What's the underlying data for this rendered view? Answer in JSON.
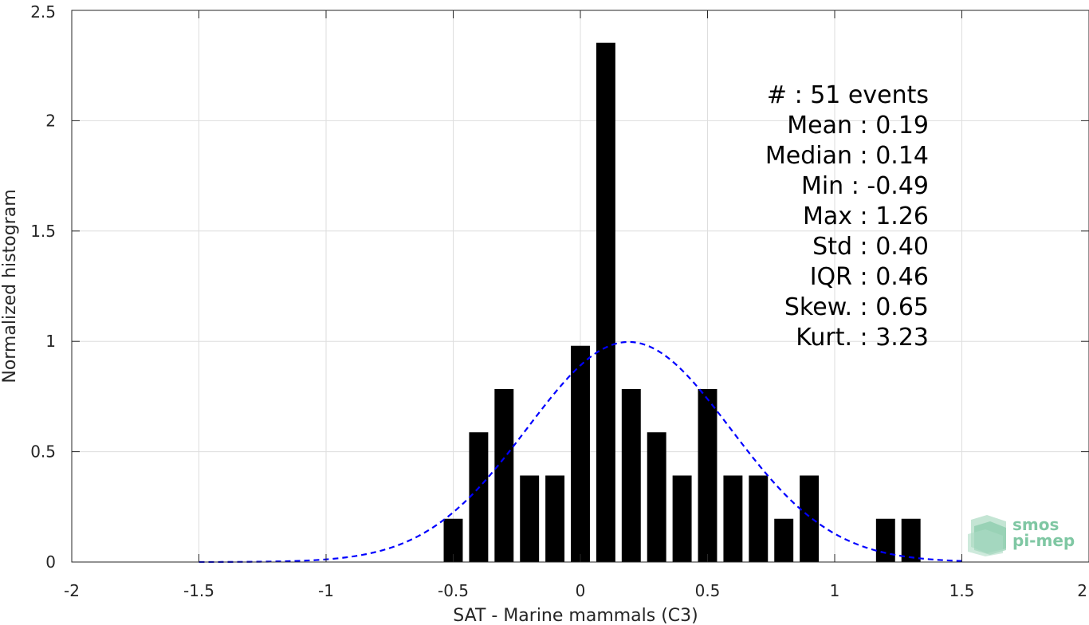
{
  "chart_data": {
    "type": "bar",
    "xlabel": "SAT - Marine mammals (C3)",
    "ylabel": "Normalized histogram",
    "xlim": [
      -2,
      2
    ],
    "ylim": [
      0,
      2.5
    ],
    "xticks": [
      -2,
      -1.5,
      -1,
      -0.5,
      0,
      0.5,
      1,
      1.5,
      2
    ],
    "xtick_labels": [
      "-2",
      "-1.5",
      "-1",
      "-0.5",
      "0",
      "0.5",
      "1",
      "1.5",
      "2"
    ],
    "yticks": [
      0,
      0.5,
      1,
      1.5,
      2,
      2.5
    ],
    "ytick_labels": [
      "0",
      "0.5",
      "1",
      "1.5",
      "2",
      "2.5"
    ],
    "grid": true,
    "bin_width": 0.1,
    "bins": [
      {
        "center": -0.5,
        "value": 0.196
      },
      {
        "center": -0.4,
        "value": 0.588
      },
      {
        "center": -0.3,
        "value": 0.784
      },
      {
        "center": -0.2,
        "value": 0.392
      },
      {
        "center": -0.1,
        "value": 0.392
      },
      {
        "center": 0.0,
        "value": 0.98
      },
      {
        "center": 0.1,
        "value": 2.353
      },
      {
        "center": 0.2,
        "value": 0.784
      },
      {
        "center": 0.3,
        "value": 0.588
      },
      {
        "center": 0.4,
        "value": 0.392
      },
      {
        "center": 0.5,
        "value": 0.784
      },
      {
        "center": 0.6,
        "value": 0.392
      },
      {
        "center": 0.7,
        "value": 0.392
      },
      {
        "center": 0.8,
        "value": 0.196
      },
      {
        "center": 0.9,
        "value": 0.392
      },
      {
        "center": 1.2,
        "value": 0.196
      },
      {
        "center": 1.3,
        "value": 0.196
      }
    ],
    "bar_color": "#000000",
    "fit_curve": {
      "type": "gaussian",
      "mean": 0.19,
      "std": 0.4,
      "x_range": [
        -1.5,
        1.5
      ],
      "color": "#0000ff",
      "style": "dashed"
    },
    "stats": [
      "#  : 51 events",
      "Mean : 0.19",
      "Median : 0.14",
      "Min : -0.49",
      "Max : 1.26",
      "Std : 0.40",
      "IQR : 0.46",
      "Skew. : 0.65",
      "Kurt. : 3.23"
    ]
  },
  "logo": {
    "line1": "smos",
    "line2": "pi-mep",
    "color": "#7fc7a3"
  }
}
